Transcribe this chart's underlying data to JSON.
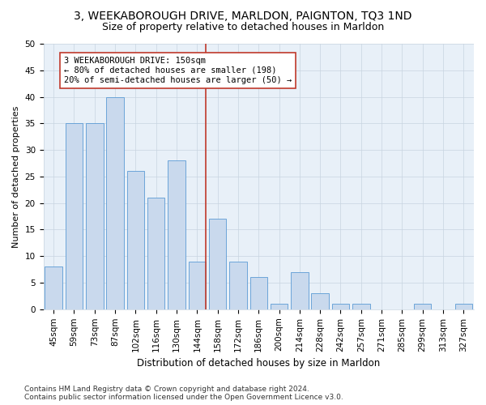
{
  "title": "3, WEEKABOROUGH DRIVE, MARLDON, PAIGNTON, TQ3 1ND",
  "subtitle": "Size of property relative to detached houses in Marldon",
  "xlabel": "Distribution of detached houses by size in Marldon",
  "ylabel": "Number of detached properties",
  "categories": [
    "45sqm",
    "59sqm",
    "73sqm",
    "87sqm",
    "102sqm",
    "116sqm",
    "130sqm",
    "144sqm",
    "158sqm",
    "172sqm",
    "186sqm",
    "200sqm",
    "214sqm",
    "228sqm",
    "242sqm",
    "257sqm",
    "271sqm",
    "285sqm",
    "299sqm",
    "313sqm",
    "327sqm"
  ],
  "values": [
    8,
    35,
    35,
    40,
    26,
    21,
    28,
    9,
    17,
    9,
    6,
    1,
    7,
    3,
    1,
    1,
    0,
    0,
    1,
    0,
    1
  ],
  "bar_color": "#c9d9ed",
  "bar_edge_color": "#5b9bd5",
  "vline_index": 7,
  "vline_color": "#c0392b",
  "annotation_text": "3 WEEKABOROUGH DRIVE: 150sqm\n← 80% of detached houses are smaller (198)\n20% of semi-detached houses are larger (50) →",
  "annotation_box_color": "#ffffff",
  "annotation_box_edge": "#c0392b",
  "ylim": [
    0,
    50
  ],
  "yticks": [
    0,
    5,
    10,
    15,
    20,
    25,
    30,
    35,
    40,
    45,
    50
  ],
  "grid_color": "#c8d4e0",
  "bg_color": "#e8f0f8",
  "footer": "Contains HM Land Registry data © Crown copyright and database right 2024.\nContains public sector information licensed under the Open Government Licence v3.0.",
  "title_fontsize": 10,
  "subtitle_fontsize": 9,
  "xlabel_fontsize": 8.5,
  "ylabel_fontsize": 8,
  "tick_fontsize": 7.5,
  "annotation_fontsize": 7.5,
  "footer_fontsize": 6.5
}
